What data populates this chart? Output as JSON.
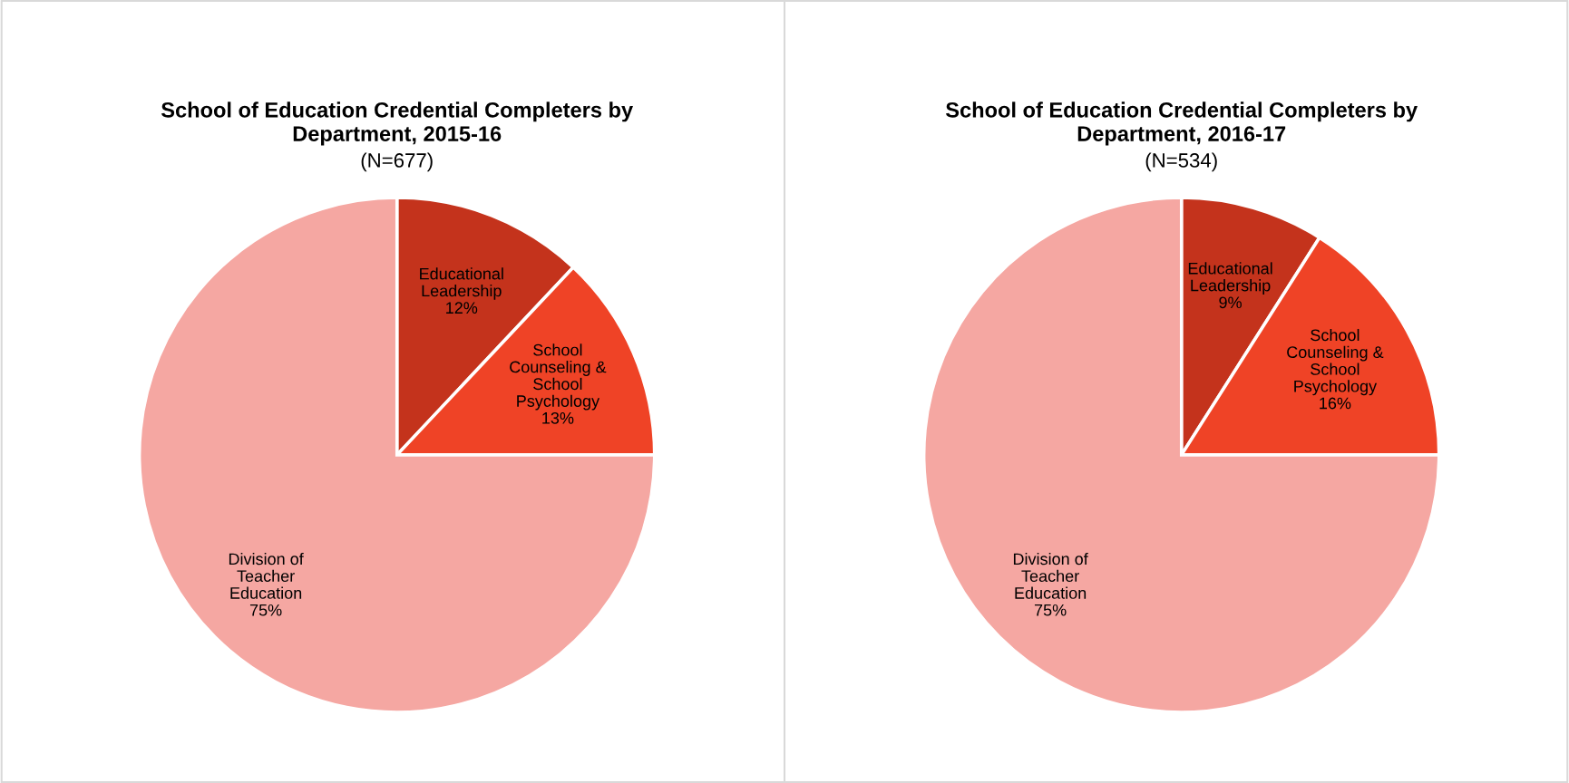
{
  "chart_data": [
    {
      "type": "pie",
      "title": "School of Education Credential Completers by\nDepartment, 2015-16",
      "subtitle": "(N=677)",
      "categories": [
        "Educational\nLeadership",
        "School\nCounseling &\nSchool\nPsychology",
        "Division of\nTeacher\nEducation"
      ],
      "values": [
        12,
        13,
        75
      ],
      "value_labels": [
        "12%",
        "13%",
        "75%"
      ],
      "colors": [
        "#c4331c",
        "#ef4326",
        "#f5a7a2"
      ],
      "legend": false
    },
    {
      "type": "pie",
      "title": "School of Education Credential Completers by\nDepartment, 2016-17",
      "subtitle": "(N=534)",
      "categories": [
        "Educational\nLeadership",
        "School\nCounseling &\nSchool\nPsychology",
        "Division of\nTeacher\nEducation"
      ],
      "values": [
        9,
        16,
        75
      ],
      "value_labels": [
        "9%",
        "16%",
        "75%"
      ],
      "colors": [
        "#c4331c",
        "#ef4326",
        "#f5a7a2"
      ],
      "legend": false
    }
  ]
}
